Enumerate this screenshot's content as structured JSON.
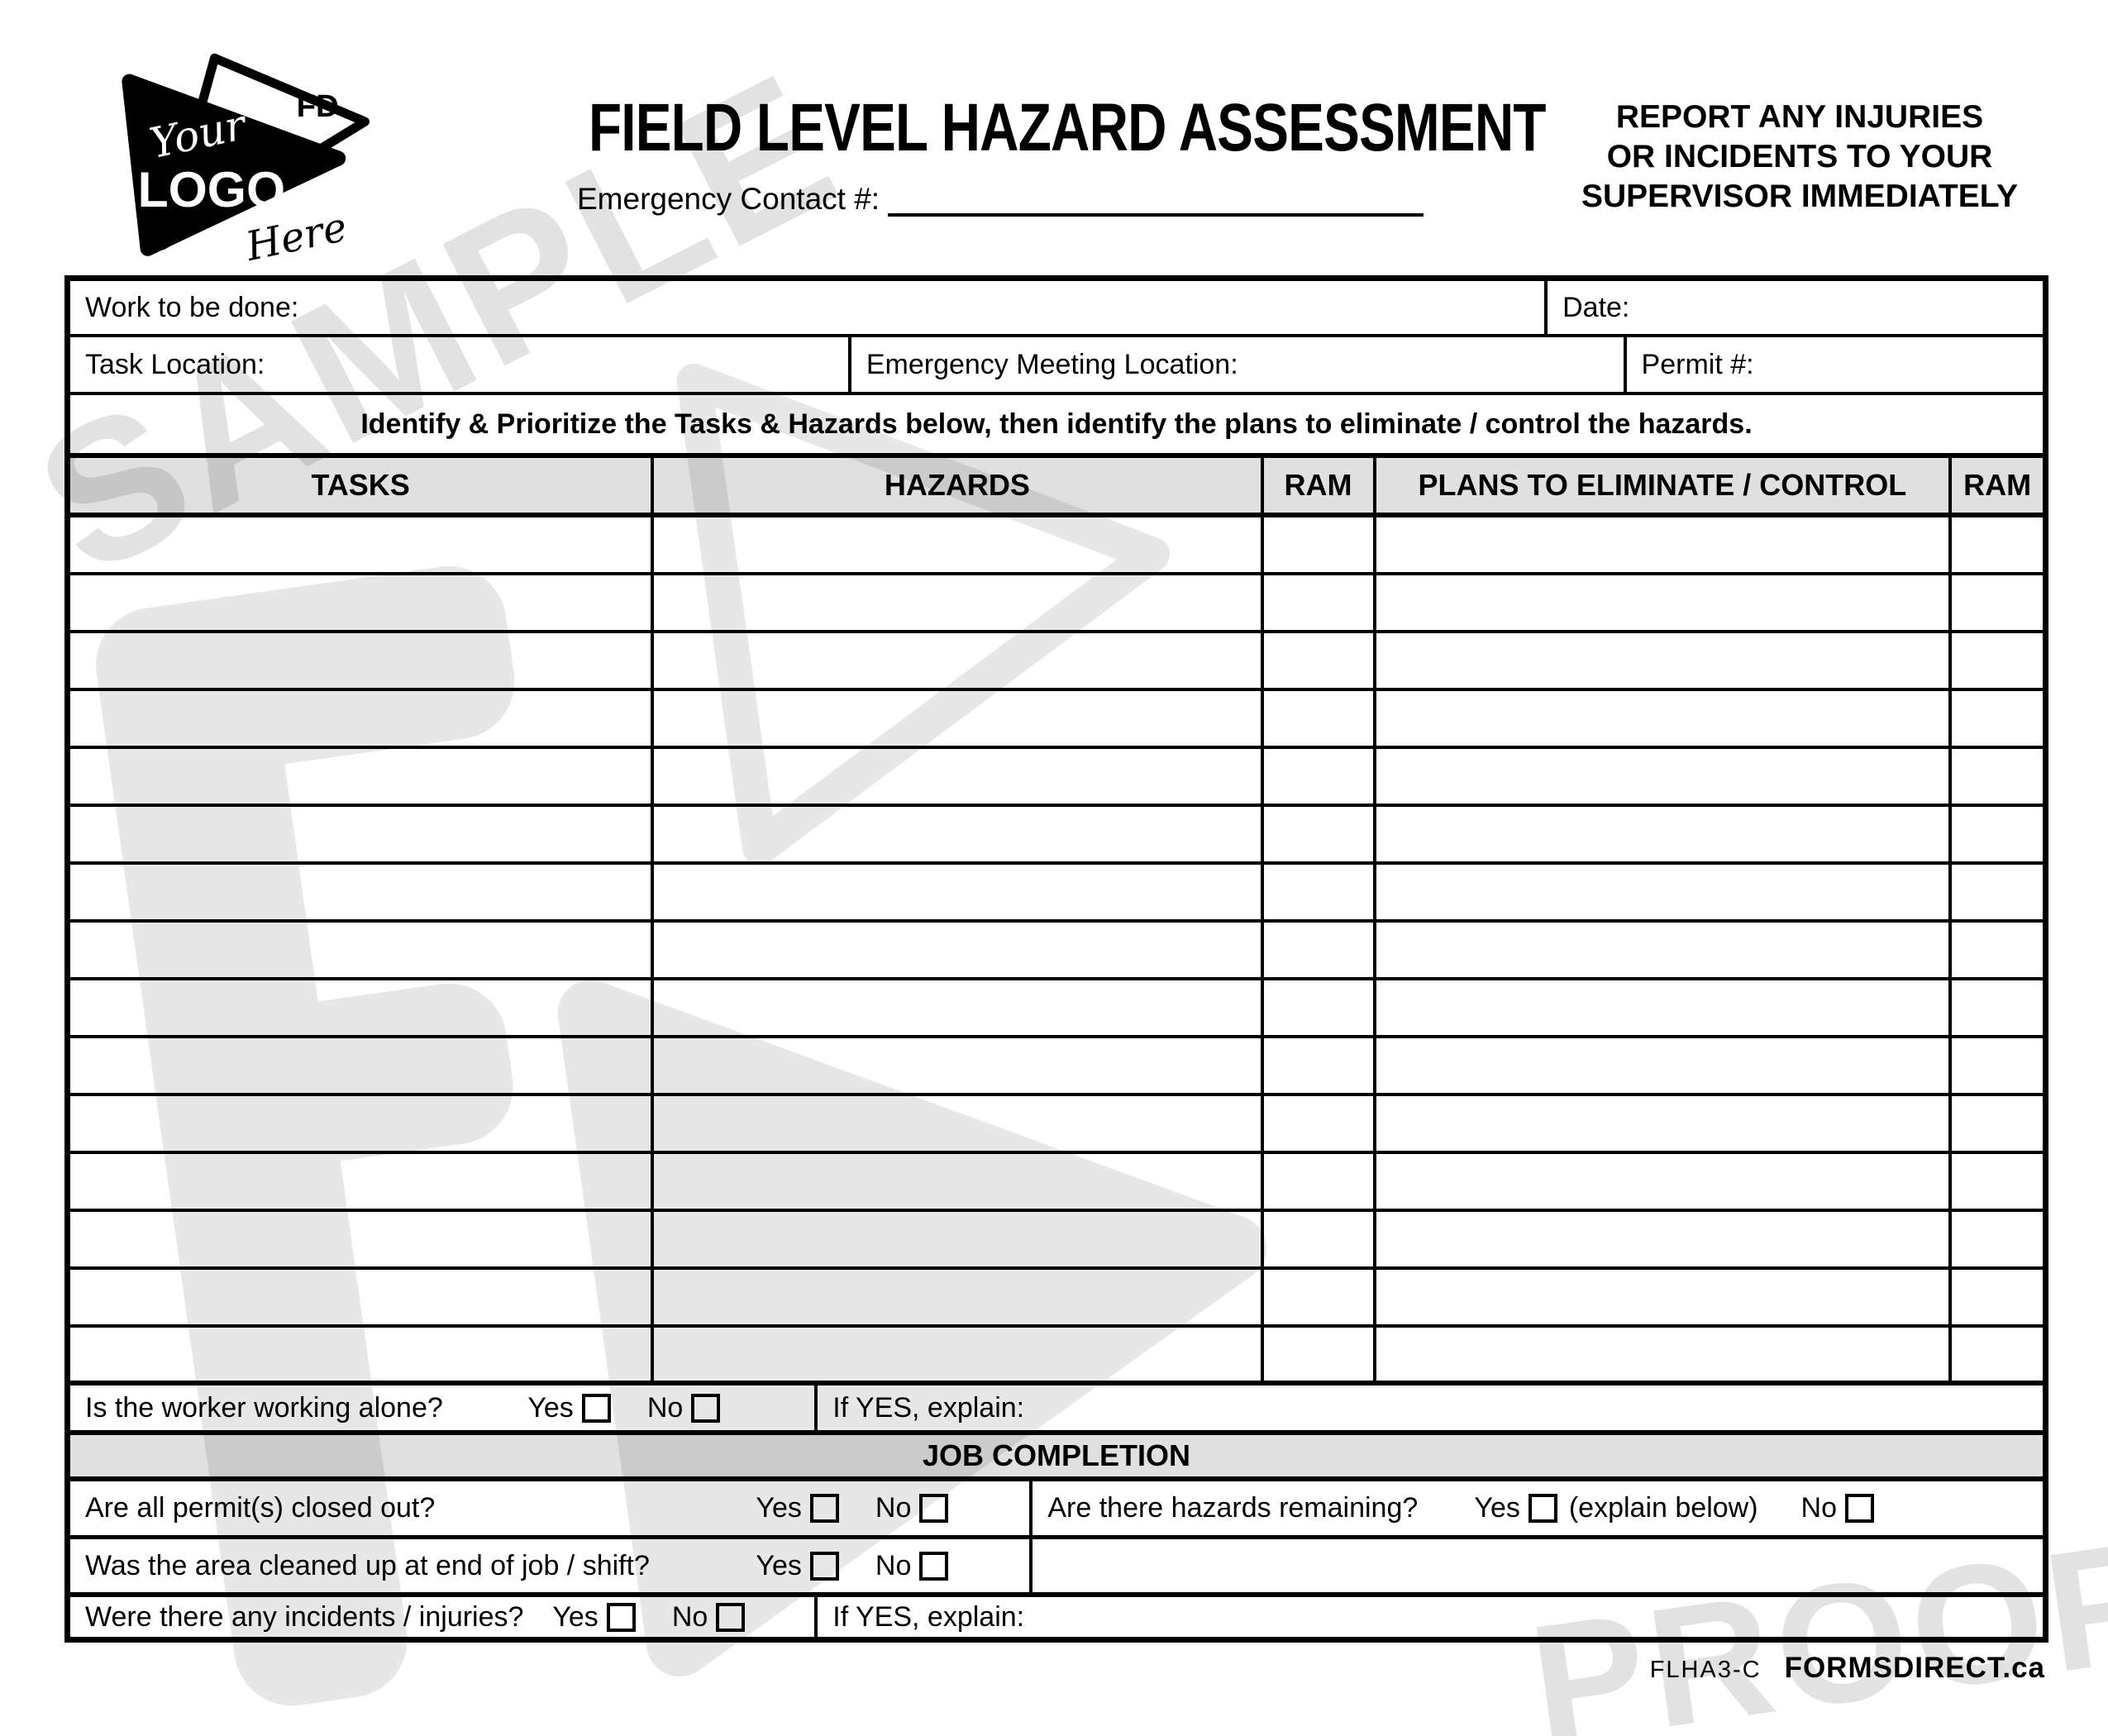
{
  "logo": {
    "your": "Your",
    "logo": "LOGO",
    "here": "Here",
    "fd": "FD",
    "star": "★"
  },
  "header": {
    "title": "FIELD LEVEL HAZARD ASSESSMENT",
    "emergency_contact_label": "Emergency Contact #:",
    "notice_line1": "REPORT ANY INJURIES",
    "notice_line2": "OR INCIDENTS TO YOUR",
    "notice_line3": "SUPERVISOR IMMEDIATELY"
  },
  "info": {
    "work_to_be_done": "Work to be done:",
    "date": "Date:",
    "task_location": "Task Location:",
    "emergency_meeting_location": "Emergency Meeting Location:",
    "permit": "Permit #:"
  },
  "instruction": "Identify & Prioritize the Tasks & Hazards below, then identify the plans to eliminate / control the hazards.",
  "table": {
    "headers": [
      "TASKS",
      "HAZARDS",
      "RAM",
      "PLANS TO ELIMINATE / CONTROL",
      "RAM"
    ],
    "empty_row_count": 15
  },
  "labels": {
    "yes": "Yes",
    "no": "No"
  },
  "worker_alone": {
    "question": "Is the worker working alone?",
    "explain": "If YES, explain:"
  },
  "job_completion": {
    "title": "JOB COMPLETION",
    "permits_question": "Are all permit(s) closed out?",
    "hazards_question": "Are there hazards remaining?",
    "hazards_yes_suffix": "(explain below)",
    "cleaned_question": "Was the area cleaned up at end of job / shift?",
    "incidents_question": "Were there any incidents / injuries?",
    "explain": "If YES, explain:"
  },
  "watermark": {
    "sample": "SAMPLE",
    "proof": "PROOF"
  },
  "footer": {
    "form_code": "FLHA3-C",
    "brand": "FORMSDIRECT.ca"
  },
  "colors": {
    "band": "#e0e0e0",
    "watermark": "#e5e5e5",
    "ink": "#000000"
  }
}
